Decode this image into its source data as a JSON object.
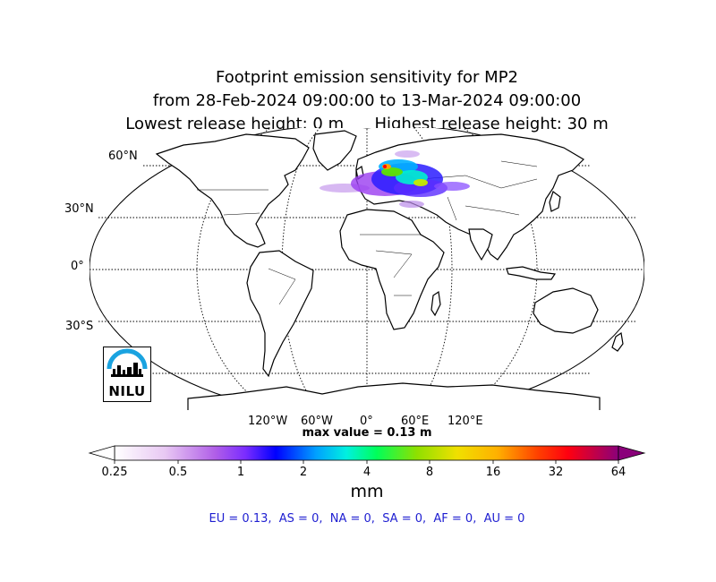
{
  "title": {
    "line1": "Footprint emission sensitivity for MP2",
    "line2": "from 28-Feb-2024 09:00:00 to 13-Mar-2024 09:00:00",
    "line3": "Lowest release height: 0 m      Highest release height: 30 m"
  },
  "map": {
    "projection": "Robinson",
    "grid": true,
    "lat_labels": [
      "60°N",
      "30°N",
      "0°",
      "30°S"
    ],
    "lon_labels": [
      "120°W",
      "60°W",
      "0°",
      "60°E",
      "120°E"
    ],
    "plume_region": "Europe",
    "land_color": "#ffffff",
    "coast_color": "#000000"
  },
  "max_value": "max value = 0.13 m",
  "colorbar": {
    "ticks": [
      "0.25",
      "0.5",
      "1",
      "2",
      "4",
      "8",
      "16",
      "32",
      "64"
    ],
    "unit": "mm",
    "colors": [
      "#ffffff",
      "#d9a6ee",
      "#a64dff",
      "#0000ff",
      "#00d1ff",
      "#00ff66",
      "#a0e000",
      "#ffe600",
      "#ffa500",
      "#ff0000",
      "#7a0070"
    ],
    "extend": "both"
  },
  "regions_text": "EU = 0.13,  AS = 0,  NA = 0,  SA = 0,  AF = 0,  AU = 0",
  "logo": {
    "text": "NILU",
    "accent": "#1aa3e0"
  }
}
